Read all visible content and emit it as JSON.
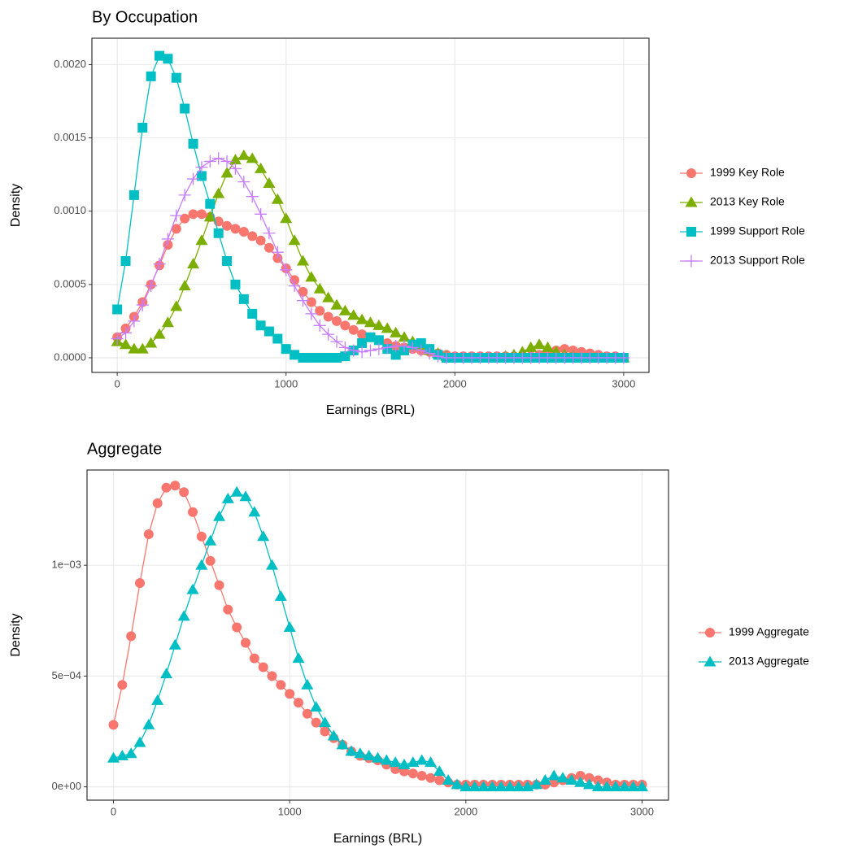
{
  "chart_data": [
    {
      "type": "line",
      "title": "By Occupation",
      "x_label": "Earnings (BRL)",
      "y_label": "Density",
      "x": [
        0,
        50,
        100,
        150,
        200,
        250,
        300,
        350,
        400,
        450,
        500,
        550,
        600,
        650,
        700,
        750,
        800,
        850,
        900,
        950,
        1000,
        1050,
        1100,
        1150,
        1200,
        1250,
        1300,
        1350,
        1400,
        1450,
        1500,
        1550,
        1600,
        1650,
        1700,
        1750,
        1800,
        1850,
        1900,
        1950,
        2000,
        2050,
        2100,
        2150,
        2200,
        2250,
        2300,
        2350,
        2400,
        2450,
        2500,
        2550,
        2600,
        2650,
        2700,
        2750,
        2800,
        2850,
        2900,
        2950,
        3000
      ],
      "series": [
        {
          "name": "1999 Key Role",
          "color": "#F8766D",
          "marker": "circle",
          "values": [
            0.00014,
            0.0002,
            0.00028,
            0.00038,
            0.0005,
            0.00063,
            0.00077,
            0.00088,
            0.00095,
            0.00098,
            0.00098,
            0.00096,
            0.00093,
            0.0009,
            0.00088,
            0.00086,
            0.00083,
            0.0008,
            0.00075,
            0.00068,
            0.00061,
            0.00053,
            0.00045,
            0.00038,
            0.00032,
            0.00028,
            0.00025,
            0.00022,
            0.00019,
            0.00016,
            0.00014,
            0.00012,
            0.0001,
            8e-05,
            7e-05,
            6e-05,
            5e-05,
            4e-05,
            3e-05,
            2e-05,
            1e-05,
            1e-05,
            1e-05,
            1e-05,
            1e-05,
            1e-05,
            1e-05,
            1e-05,
            1e-05,
            1e-05,
            2e-05,
            3e-05,
            5e-05,
            6e-05,
            5e-05,
            4e-05,
            3e-05,
            2e-05,
            1e-05,
            1e-05,
            0
          ]
        },
        {
          "name": "2013 Key Role",
          "color": "#7CAE00",
          "marker": "triangle",
          "values": [
            0.00011,
            9e-05,
            6e-05,
            6e-05,
            0.0001,
            0.00016,
            0.00024,
            0.00035,
            0.00049,
            0.00064,
            0.0008,
            0.00096,
            0.00112,
            0.00126,
            0.00135,
            0.00138,
            0.00136,
            0.00129,
            0.00119,
            0.00108,
            0.00095,
            0.0008,
            0.00066,
            0.00055,
            0.00047,
            0.00041,
            0.00036,
            0.00032,
            0.00029,
            0.00026,
            0.00024,
            0.00022,
            0.0002,
            0.00017,
            0.00014,
            0.00011,
            8e-05,
            5e-05,
            3e-05,
            1e-05,
            0,
            0,
            0,
            0,
            0,
            0,
            1e-05,
            2e-05,
            4e-05,
            7e-05,
            9e-05,
            7e-05,
            4e-05,
            2e-05,
            1e-05,
            0,
            0,
            0,
            0,
            0,
            0
          ]
        },
        {
          "name": "1999 Support Role",
          "color": "#00BFC4",
          "marker": "square",
          "values": [
            0.00033,
            0.00066,
            0.00111,
            0.00157,
            0.00192,
            0.00206,
            0.00204,
            0.00191,
            0.0017,
            0.00146,
            0.00124,
            0.00105,
            0.00085,
            0.00066,
            0.0005,
            0.0004,
            0.0003,
            0.00022,
            0.00018,
            0.00013,
            6e-05,
            2e-05,
            0,
            0,
            0,
            0,
            0,
            1e-05,
            5e-05,
            0.0001,
            0.00014,
            0.00012,
            6e-05,
            2e-05,
            5e-05,
            9e-05,
            0.0001,
            6e-05,
            2e-05,
            0,
            0,
            0,
            0,
            0,
            0,
            0,
            0,
            0,
            0,
            0,
            0,
            0,
            0,
            0,
            0,
            0,
            0,
            0,
            0,
            0,
            0
          ]
        },
        {
          "name": "2013 Support Role",
          "color": "#C77CFF",
          "marker": "plus",
          "values": [
            0.00013,
            0.00017,
            0.00025,
            0.00036,
            0.00049,
            0.00064,
            0.00081,
            0.00097,
            0.00111,
            0.00122,
            0.0013,
            0.00134,
            0.00136,
            0.00134,
            0.00129,
            0.0012,
            0.0011,
            0.00098,
            0.00085,
            0.00072,
            0.0006,
            0.00049,
            0.00039,
            0.0003,
            0.00022,
            0.00016,
            0.00011,
            7e-05,
            5e-05,
            4e-05,
            5e-05,
            6e-05,
            7e-05,
            8e-05,
            8e-05,
            7e-05,
            5e-05,
            3e-05,
            1e-05,
            0,
            0,
            0,
            0,
            0,
            0,
            0,
            0,
            0,
            0,
            0,
            0,
            0,
            0,
            0,
            0,
            0,
            0,
            0,
            0,
            0,
            0
          ]
        }
      ],
      "xlim": [
        -150,
        3150
      ],
      "xticks": [
        0,
        1000,
        2000,
        3000
      ],
      "ylim": [
        -0.0001,
        0.00218
      ],
      "yticks": [
        {
          "value": 0,
          "label": "0.0000"
        },
        {
          "value": 0.0005,
          "label": "0.0005"
        },
        {
          "value": 0.001,
          "label": "0.0010"
        },
        {
          "value": 0.0015,
          "label": "0.0015"
        },
        {
          "value": 0.002,
          "label": "0.0020"
        }
      ],
      "grid": true,
      "legend": "right"
    },
    {
      "type": "line",
      "title": "Aggregate",
      "x_label": "Earnings (BRL)",
      "y_label": "Density",
      "x": [
        0,
        50,
        100,
        150,
        200,
        250,
        300,
        350,
        400,
        450,
        500,
        550,
        600,
        650,
        700,
        750,
        800,
        850,
        900,
        950,
        1000,
        1050,
        1100,
        1150,
        1200,
        1250,
        1300,
        1350,
        1400,
        1450,
        1500,
        1550,
        1600,
        1650,
        1700,
        1750,
        1800,
        1850,
        1900,
        1950,
        2000,
        2050,
        2100,
        2150,
        2200,
        2250,
        2300,
        2350,
        2400,
        2450,
        2500,
        2550,
        2600,
        2650,
        2700,
        2750,
        2800,
        2850,
        2900,
        2950,
        3000
      ],
      "series": [
        {
          "name": "1999 Aggregate",
          "color": "#F8766D",
          "marker": "circle",
          "values": [
            0.00028,
            0.00046,
            0.00068,
            0.00092,
            0.00114,
            0.00128,
            0.00135,
            0.00136,
            0.00133,
            0.00124,
            0.00113,
            0.00102,
            0.00091,
            0.0008,
            0.00072,
            0.00065,
            0.00058,
            0.00054,
            0.0005,
            0.00046,
            0.00042,
            0.00038,
            0.00033,
            0.00029,
            0.00025,
            0.00022,
            0.00019,
            0.00016,
            0.00014,
            0.00013,
            0.00012,
            0.0001,
            8e-05,
            7e-05,
            6e-05,
            5e-05,
            4e-05,
            3e-05,
            2e-05,
            1e-05,
            1e-05,
            1e-05,
            1e-05,
            1e-05,
            1e-05,
            1e-05,
            1e-05,
            1e-05,
            1e-05,
            1e-05,
            2e-05,
            3e-05,
            4e-05,
            5e-05,
            4e-05,
            3e-05,
            2e-05,
            1e-05,
            1e-05,
            1e-05,
            1e-05
          ]
        },
        {
          "name": "2013 Aggregate",
          "color": "#00BFC4",
          "marker": "triangle",
          "values": [
            0.00013,
            0.00014,
            0.00015,
            0.0002,
            0.00028,
            0.00039,
            0.00051,
            0.00064,
            0.00077,
            0.00089,
            0.001,
            0.00111,
            0.00122,
            0.0013,
            0.00133,
            0.00131,
            0.00124,
            0.00113,
            0.001,
            0.00086,
            0.00072,
            0.00058,
            0.00046,
            0.00036,
            0.00029,
            0.00023,
            0.00019,
            0.00016,
            0.00015,
            0.00014,
            0.00013,
            0.00012,
            0.00011,
            0.0001,
            0.00011,
            0.00012,
            0.00011,
            7e-05,
            3e-05,
            1e-05,
            0,
            0,
            0,
            0,
            0,
            0,
            0,
            0,
            1e-05,
            3e-05,
            5e-05,
            4e-05,
            3e-05,
            2e-05,
            1e-05,
            0,
            0,
            0,
            0,
            0,
            0
          ]
        }
      ],
      "xlim": [
        -150,
        3150
      ],
      "xticks": [
        0,
        1000,
        2000,
        3000
      ],
      "ylim": [
        -6e-05,
        0.00143
      ],
      "yticks": [
        {
          "value": 0,
          "label": "0e+00"
        },
        {
          "value": 0.0005,
          "label": "5e−04"
        },
        {
          "value": 0.001,
          "label": "1e−03"
        }
      ],
      "grid": true,
      "legend": "right"
    }
  ]
}
